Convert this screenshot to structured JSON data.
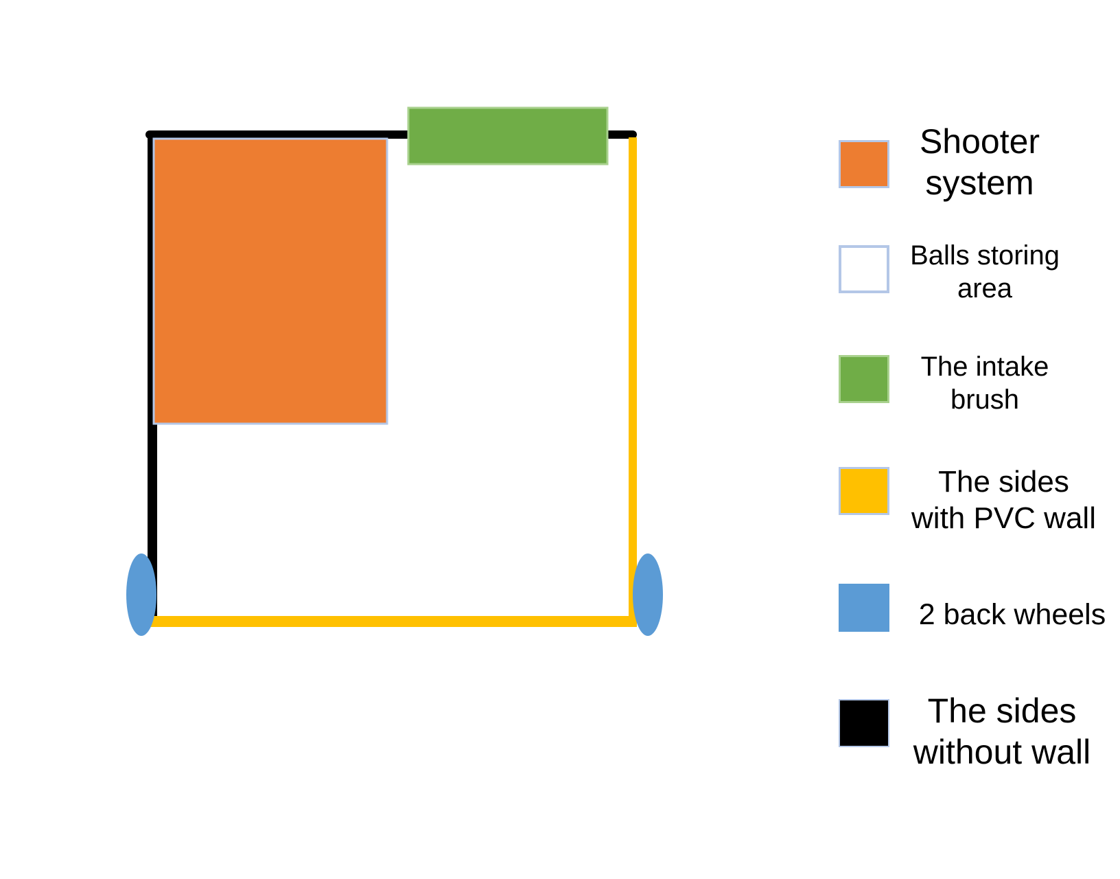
{
  "colors": {
    "shooter": "#ED7D31",
    "storage_fill": "#FFFFFF",
    "storage_border": "#B4C7E7",
    "intake": "#70AD47",
    "pvc_wall": "#FFC000",
    "wheels": "#5B9BD5",
    "no_wall": "#000000"
  },
  "legend": {
    "shooter": {
      "line1": "Shooter",
      "line2": "system"
    },
    "storage": {
      "line1": "Balls storing",
      "line2": "area"
    },
    "intake": {
      "line1": "The intake",
      "line2": "brush"
    },
    "pvc": {
      "line1": "The sides",
      "line2": "with PVC wall"
    },
    "wheels": {
      "line1": "2 back wheels"
    },
    "nowall": {
      "line1": "The sides",
      "line2": "without wall"
    }
  }
}
